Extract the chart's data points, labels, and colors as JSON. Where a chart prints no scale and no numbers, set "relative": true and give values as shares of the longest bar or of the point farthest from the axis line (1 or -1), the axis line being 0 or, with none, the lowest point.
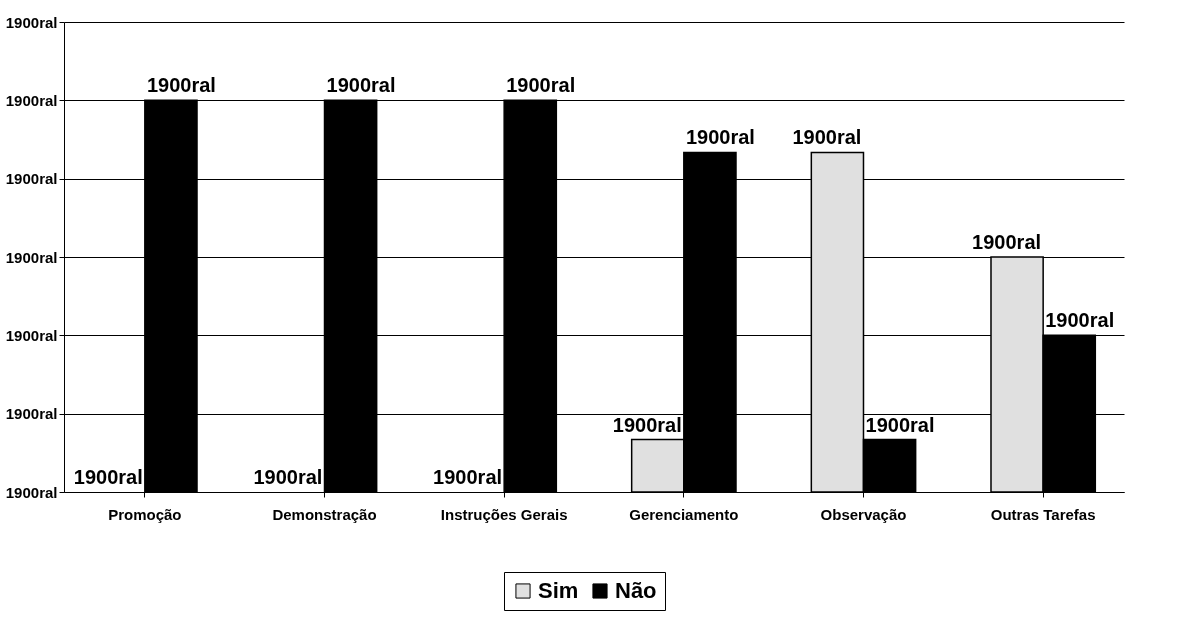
{
  "chart_data": {
    "type": "bar",
    "relative": true,
    "categories": [
      "Promoção",
      "Demonstração",
      "Instruções Gerais",
      "Gerenciamento",
      "Observação",
      "Outras Tarefas"
    ],
    "series": [
      {
        "name": "Sim",
        "color": "#e0e0e0",
        "values": [
          0,
          0,
          0,
          0.134,
          0.867,
          0.6
        ]
      },
      {
        "name": "Não",
        "color": "#000000",
        "values": [
          1,
          1,
          1,
          0.867,
          0.134,
          0.4
        ]
      }
    ],
    "annotations": [
      "1900ral",
      "1900ral",
      "1900ral",
      "1900ral",
      "1900ral",
      "1900ral",
      "1900ral",
      {
        "text": "1900ral",
        "x": "Promoção",
        "y": 0
      },
      {
        "text": "1900ral",
        "x": "Demonstração",
        "y": 0
      },
      {
        "text": "1900ral",
        "x": "Instruções Gerais",
        "y": 0
      },
      {
        "text": "1900ral",
        "x": "Gerenciamento",
        "y": 0.134
      },
      {
        "text": "1900ral",
        "x": "Observação",
        "y": 0.867
      },
      {
        "text": "1900ral",
        "x": "Outras Tarefas",
        "y": 0.6
      },
      {
        "text": "1900ral",
        "x": "Promoção",
        "y": 1
      },
      {
        "text": "1900ral",
        "x": "Demonstração",
        "y": 1
      },
      {
        "text": "1900ral",
        "x": "Instruções Gerais",
        "y": 1
      },
      {
        "text": "1900ral",
        "x": "Gerenciamento",
        "y": 0.867
      },
      {
        "text": "1900ral",
        "x": "Observação",
        "y": 0.134
      },
      {
        "text": "1900ral",
        "x": "Outras Tarefas",
        "y": 0.4
      }
    ],
    "grid": "y",
    "legend": "bottom"
  }
}
